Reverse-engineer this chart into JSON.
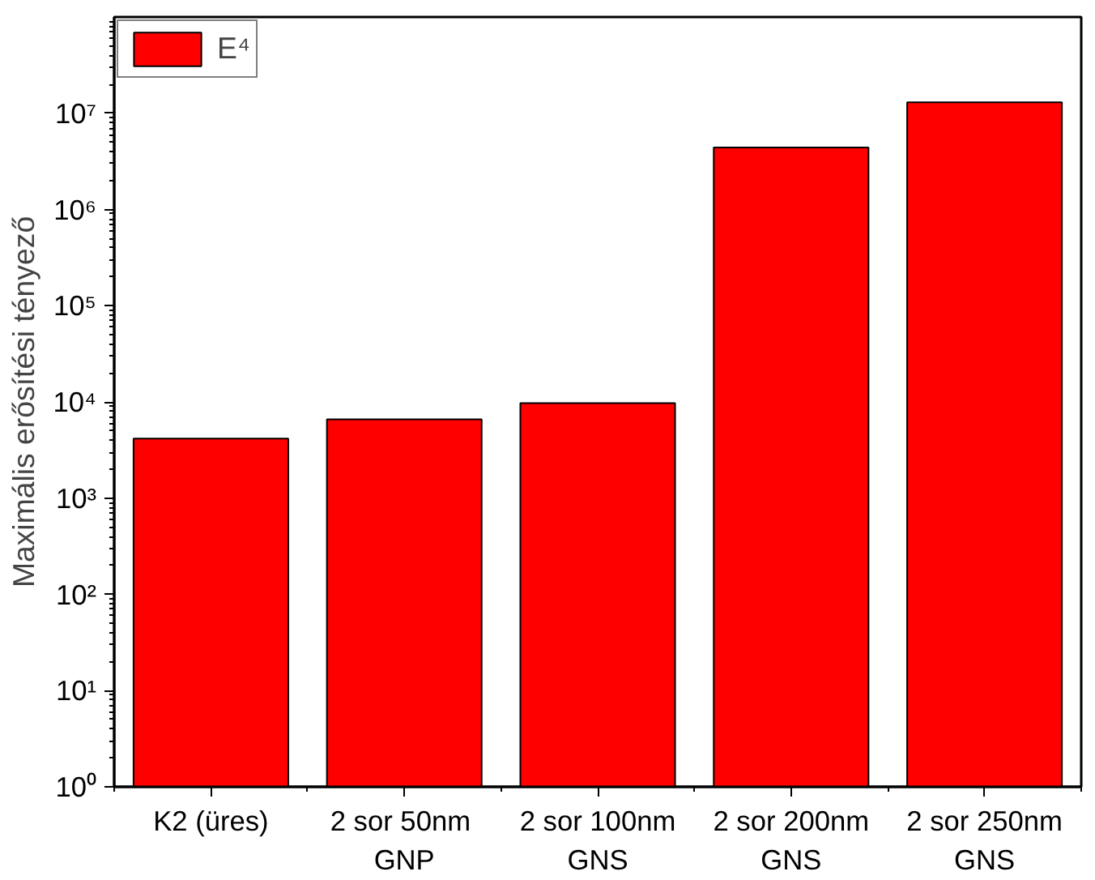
{
  "chart_data": {
    "type": "bar",
    "ylabel": "Maximális erősítési tényező",
    "categories": [
      "K2 (üres)",
      "2 sor  50nm\nGNP",
      "2 sor 100nm\nGNS",
      "2 sor 200nm\nGNS",
      "2 sor 250nm\nGNS"
    ],
    "series": [
      {
        "name": "E⁴",
        "color": "#ff0000",
        "values": [
          4150,
          6600,
          9700,
          4400000,
          13000000
        ]
      }
    ],
    "log": "y",
    "ylim": [
      1,
      100000000
    ],
    "yticks": [
      {
        "value": 1,
        "label": "10⁰"
      },
      {
        "value": 10,
        "label": "10¹"
      },
      {
        "value": 100,
        "label": "10²"
      },
      {
        "value": 1000,
        "label": "10³"
      },
      {
        "value": 10000,
        "label": "10⁴"
      },
      {
        "value": 100000,
        "label": "10⁵"
      },
      {
        "value": 1000000,
        "label": "10⁶"
      },
      {
        "value": 10000000,
        "label": "10⁷"
      }
    ],
    "grid": false,
    "legend": "top left"
  }
}
